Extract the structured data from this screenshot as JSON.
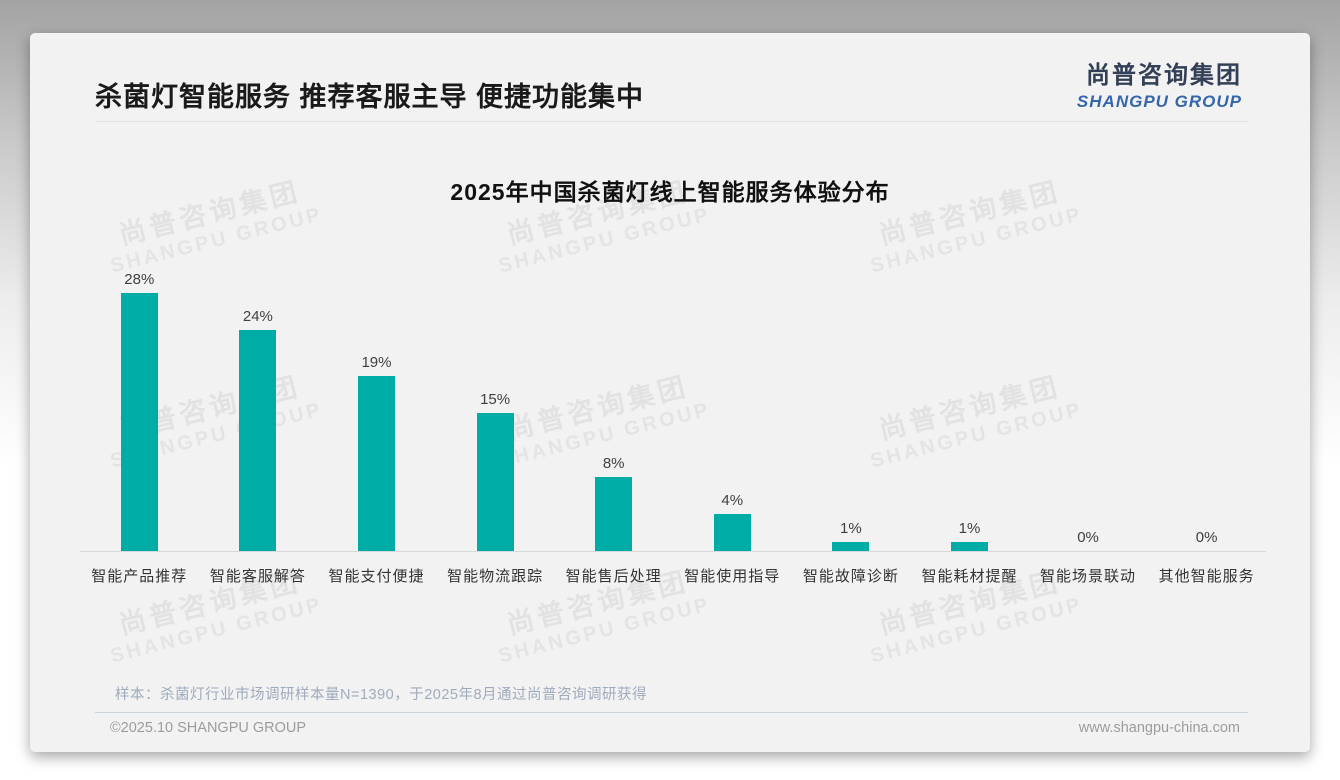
{
  "page": {
    "title": "杀菌灯智能服务 推荐客服主导 便捷功能集中",
    "logo": {
      "cn": "尚普咨询集团",
      "en": "SHANGPU GROUP"
    },
    "watermark": {
      "cn": "尚普咨询集团",
      "en": "SHANGPU GROUP"
    },
    "sample_note": "样本：杀菌灯行业市场调研样本量N=1390，于2025年8月通过尚普咨询调研获得",
    "footer": {
      "left": "©2025.10 SHANGPU GROUP",
      "right": "www.shangpu-china.com"
    }
  },
  "colors": {
    "bar": "#00ada6",
    "title_text": "#1a1a1a",
    "logo_navy": "#333f56",
    "logo_blue": "#3566a9",
    "card_bg": "#f2f2f2"
  },
  "chart_data": {
    "type": "bar",
    "title": "2025年中国杀菌灯线上智能服务体验分布",
    "categories": [
      "智能产品推荐",
      "智能客服解答",
      "智能支付便捷",
      "智能物流跟踪",
      "智能售后处理",
      "智能使用指导",
      "智能故障诊断",
      "智能耗材提醒",
      "智能场景联动",
      "其他智能服务"
    ],
    "values": [
      28,
      24,
      19,
      15,
      8,
      4,
      1,
      1,
      0,
      0
    ],
    "unit": "%",
    "value_labels": [
      "28%",
      "24%",
      "19%",
      "15%",
      "8%",
      "4%",
      "1%",
      "1%",
      "0%",
      "0%"
    ],
    "xlabel": "",
    "ylabel": "",
    "ylim": [
      0,
      30
    ],
    "grid": false,
    "legend": false,
    "bar_color": "#00ada6"
  }
}
